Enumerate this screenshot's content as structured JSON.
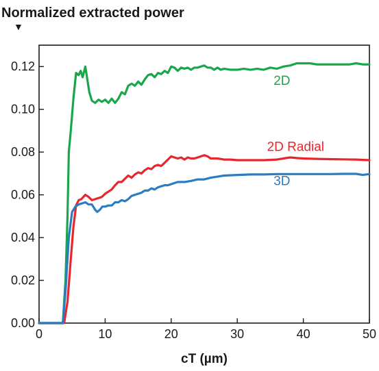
{
  "chart_data": {
    "type": "line",
    "title": "Normalized extracted power",
    "title_marker": "▼",
    "xlabel": "cT (µm)",
    "ylabel": "",
    "xlim": [
      0,
      50
    ],
    "ylim": [
      0,
      0.13
    ],
    "x_ticks": [
      0,
      10,
      20,
      30,
      40,
      50
    ],
    "x_tick_labels": [
      "0",
      "10",
      "20",
      "30",
      "40",
      "50"
    ],
    "y_ticks": [
      0,
      0.02,
      0.04,
      0.06,
      0.08,
      0.1,
      0.12
    ],
    "y_tick_labels": [
      "0.00",
      "0.02",
      "0.04",
      "0.06",
      "0.08",
      "0.10",
      "0.12"
    ],
    "grid": false,
    "legend": "inline labels",
    "series": [
      {
        "name": "2D",
        "color": "#1aa64a",
        "label_at": [
          35.5,
          0.1115
        ],
        "x": [
          0,
          3.6,
          4.0,
          4.3,
          4.5,
          4.8,
          5.2,
          5.6,
          6.0,
          6.3,
          6.6,
          7.0,
          7.3,
          7.6,
          8.0,
          8.5,
          9.0,
          9.5,
          10.0,
          10.5,
          11.0,
          11.5,
          12.0,
          12.5,
          13.0,
          13.5,
          14.0,
          14.5,
          15.0,
          15.5,
          16.0,
          16.5,
          17.0,
          17.5,
          18.0,
          18.5,
          19.0,
          19.5,
          20.0,
          20.5,
          21.0,
          21.5,
          22.0,
          22.5,
          23.0,
          23.5,
          24.0,
          24.5,
          25.0,
          25.5,
          26.0,
          26.5,
          27.0,
          27.5,
          28.0,
          29.0,
          30.0,
          31.0,
          32.0,
          33.0,
          34.0,
          35.0,
          36.0,
          37.0,
          38.0,
          39.0,
          40.0,
          41.0,
          42.0,
          43.0,
          44.0,
          45.0,
          46.0,
          47.0,
          48.0,
          49.0,
          50.0
        ],
        "y": [
          0,
          0,
          0.02,
          0.05,
          0.08,
          0.09,
          0.105,
          0.117,
          0.116,
          0.118,
          0.115,
          0.12,
          0.114,
          0.108,
          0.104,
          0.103,
          0.1045,
          0.1035,
          0.1045,
          0.103,
          0.105,
          0.103,
          0.105,
          0.108,
          0.107,
          0.111,
          0.112,
          0.111,
          0.113,
          0.1115,
          0.114,
          0.116,
          0.1165,
          0.115,
          0.117,
          0.1165,
          0.118,
          0.117,
          0.12,
          0.1195,
          0.118,
          0.1195,
          0.119,
          0.1195,
          0.1185,
          0.1195,
          0.1195,
          0.12,
          0.1205,
          0.1195,
          0.1195,
          0.1185,
          0.1195,
          0.1185,
          0.119,
          0.1185,
          0.1185,
          0.119,
          0.1185,
          0.119,
          0.1185,
          0.1195,
          0.119,
          0.12,
          0.1205,
          0.1215,
          0.1215,
          0.1215,
          0.121,
          0.121,
          0.121,
          0.121,
          0.121,
          0.121,
          0.1215,
          0.121,
          0.121
        ]
      },
      {
        "name": "2D Radial",
        "color": "#e8262d",
        "label_at": [
          34.5,
          0.0805
        ],
        "x": [
          0,
          3.8,
          4.3,
          4.8,
          5.2,
          5.6,
          6.0,
          6.4,
          7.0,
          7.5,
          8.0,
          8.5,
          9.0,
          9.5,
          10.0,
          10.5,
          11.0,
          11.5,
          12.0,
          12.5,
          13.0,
          13.5,
          14.0,
          14.5,
          15.0,
          15.5,
          16.0,
          16.5,
          17.0,
          17.5,
          18.0,
          18.5,
          19.0,
          19.5,
          20.0,
          20.5,
          21.0,
          21.5,
          22.0,
          22.5,
          23.0,
          23.5,
          24.0,
          24.5,
          25.0,
          25.5,
          26.0,
          27.0,
          28.0,
          29.0,
          30.0,
          32.0,
          34.0,
          36.0,
          37.0,
          38.0,
          39.0,
          40.0,
          42.0,
          44.0,
          46.0,
          48.0,
          50.0
        ],
        "y": [
          0,
          0,
          0.01,
          0.03,
          0.045,
          0.055,
          0.0575,
          0.058,
          0.06,
          0.059,
          0.0575,
          0.058,
          0.0585,
          0.059,
          0.0605,
          0.0615,
          0.0625,
          0.0645,
          0.066,
          0.066,
          0.0675,
          0.069,
          0.068,
          0.0695,
          0.0705,
          0.07,
          0.0715,
          0.0725,
          0.072,
          0.0735,
          0.074,
          0.0735,
          0.075,
          0.0765,
          0.078,
          0.0775,
          0.077,
          0.0775,
          0.0765,
          0.0775,
          0.077,
          0.077,
          0.0775,
          0.078,
          0.0785,
          0.078,
          0.077,
          0.077,
          0.0765,
          0.0765,
          0.0762,
          0.0762,
          0.0762,
          0.0765,
          0.077,
          0.0775,
          0.0772,
          0.077,
          0.0768,
          0.0767,
          0.0766,
          0.0765,
          0.0762
        ]
      },
      {
        "name": "3D",
        "color": "#2b7cc3",
        "label_at": [
          35.5,
          0.0645
        ],
        "x": [
          0,
          3.6,
          4.0,
          4.5,
          5.0,
          5.5,
          6.0,
          6.5,
          7.0,
          7.5,
          8.0,
          8.5,
          8.8,
          9.2,
          9.6,
          10.0,
          10.5,
          11.0,
          11.5,
          12.0,
          12.5,
          13.0,
          13.5,
          14.0,
          14.5,
          15.0,
          15.5,
          16.0,
          16.5,
          17.0,
          17.5,
          18.0,
          18.5,
          19.0,
          19.5,
          20.0,
          20.5,
          21.0,
          22.0,
          23.0,
          24.0,
          25.0,
          26.0,
          27.0,
          28.0,
          30.0,
          32.0,
          34.0,
          36.0,
          38.0,
          40.0,
          42.0,
          44.0,
          46.0,
          48.0,
          49.0,
          50.0
        ],
        "y": [
          0,
          0,
          0.015,
          0.04,
          0.052,
          0.0545,
          0.0555,
          0.056,
          0.0565,
          0.0555,
          0.0555,
          0.053,
          0.052,
          0.053,
          0.0545,
          0.0545,
          0.055,
          0.055,
          0.0565,
          0.0565,
          0.0575,
          0.057,
          0.058,
          0.0595,
          0.06,
          0.0605,
          0.061,
          0.062,
          0.062,
          0.063,
          0.0625,
          0.0635,
          0.064,
          0.0645,
          0.0645,
          0.065,
          0.0655,
          0.066,
          0.066,
          0.0665,
          0.0672,
          0.0672,
          0.068,
          0.0685,
          0.069,
          0.0693,
          0.0695,
          0.0695,
          0.0697,
          0.0697,
          0.0697,
          0.0697,
          0.0697,
          0.0698,
          0.0698,
          0.0693,
          0.0697
        ]
      }
    ]
  }
}
